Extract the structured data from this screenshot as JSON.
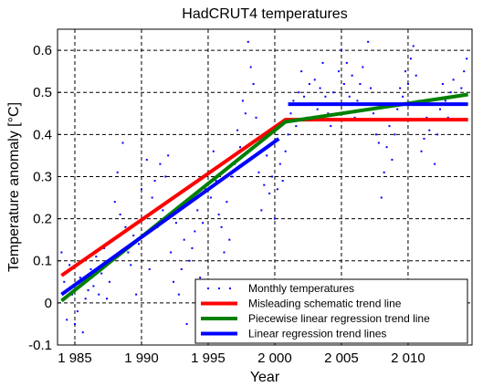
{
  "chart_data": {
    "type": "line",
    "title": "HadCRUT4 temperatures",
    "xlabel": "Year",
    "ylabel": "Temperature anomaly [°C]",
    "xlim": [
      1983.7,
      2014.8
    ],
    "ylim": [
      -0.1,
      0.65
    ],
    "xticks": [
      1985,
      1990,
      1995,
      2000,
      2005,
      2010
    ],
    "xtick_labels": [
      "1 985",
      "1 990",
      "1 995",
      "2 000",
      "2 005",
      "2 010"
    ],
    "yticks": [
      -0.1,
      0,
      0.1,
      0.2,
      0.3,
      0.4,
      0.5,
      0.6
    ],
    "ytick_labels": [
      "-0.1",
      "0",
      "0.1",
      "0.2",
      "0.3",
      "0.4",
      "0.5",
      "0.6"
    ],
    "grid": true,
    "legend_position": "bottom-right",
    "colors": {
      "monthly": "#0000ff",
      "misleading": "#ff0000",
      "piecewise": "#008000",
      "linear": "#0000ff"
    },
    "series": [
      {
        "name": "Monthly temperatures",
        "style": "dots",
        "color": "#0000ff",
        "x": [
          1984.0,
          1984.2,
          1984.4,
          1984.6,
          1984.8,
          1985.0,
          1985.2,
          1985.4,
          1985.6,
          1985.8,
          1986.0,
          1986.2,
          1986.4,
          1986.6,
          1986.8,
          1987.0,
          1987.2,
          1987.4,
          1987.6,
          1987.8,
          1988.0,
          1988.2,
          1988.4,
          1988.6,
          1988.8,
          1989.0,
          1989.2,
          1989.4,
          1989.6,
          1989.8,
          1990.0,
          1990.2,
          1990.4,
          1990.6,
          1990.8,
          1991.0,
          1991.2,
          1991.4,
          1991.6,
          1991.8,
          1992.0,
          1992.2,
          1992.4,
          1992.6,
          1992.8,
          1993.0,
          1993.2,
          1993.4,
          1993.6,
          1993.8,
          1994.0,
          1994.2,
          1994.4,
          1994.6,
          1994.8,
          1995.0,
          1995.2,
          1995.4,
          1995.6,
          1995.8,
          1996.0,
          1996.2,
          1996.4,
          1996.6,
          1996.8,
          1997.0,
          1997.2,
          1997.4,
          1997.6,
          1997.8,
          1998.0,
          1998.2,
          1998.4,
          1998.6,
          1998.8,
          1999.0,
          1999.2,
          1999.4,
          1999.6,
          1999.8,
          2000.0,
          2000.2,
          2000.4,
          2000.6,
          2000.8,
          2001.0,
          2001.2,
          2001.4,
          2001.6,
          2001.8,
          2002.0,
          2002.2,
          2002.4,
          2002.6,
          2002.8,
          2003.0,
          2003.2,
          2003.4,
          2003.6,
          2003.8,
          2004.0,
          2004.2,
          2004.4,
          2004.6,
          2004.8,
          2005.0,
          2005.2,
          2005.4,
          2005.6,
          2005.8,
          2006.0,
          2006.2,
          2006.4,
          2006.6,
          2006.8,
          2007.0,
          2007.2,
          2007.4,
          2007.6,
          2007.8,
          2008.0,
          2008.2,
          2008.4,
          2008.6,
          2008.8,
          2009.0,
          2009.2,
          2009.4,
          2009.6,
          2009.8,
          2010.0,
          2010.2,
          2010.4,
          2010.6,
          2010.8,
          2011.0,
          2011.2,
          2011.4,
          2011.6,
          2011.8,
          2012.0,
          2012.2,
          2012.4,
          2012.6,
          2012.8,
          2013.0,
          2013.2,
          2013.4,
          2013.6,
          2013.8,
          2014.0,
          2014.2,
          2014.4
        ],
        "y": [
          0.12,
          0.05,
          -0.04,
          0.09,
          0.02,
          -0.05,
          -0.02,
          0.06,
          -0.07,
          0.01,
          0.03,
          0.08,
          0.04,
          0.11,
          0.02,
          0.07,
          0.13,
          0.01,
          0.05,
          0.1,
          0.24,
          0.31,
          0.21,
          0.38,
          0.18,
          0.12,
          0.09,
          0.16,
          0.02,
          0.14,
          0.27,
          0.2,
          0.34,
          0.08,
          0.25,
          0.29,
          0.18,
          0.33,
          0.22,
          0.3,
          0.35,
          0.12,
          0.05,
          0.19,
          0.02,
          0.08,
          0.15,
          -0.05,
          0.1,
          0.13,
          0.17,
          0.22,
          0.06,
          0.19,
          0.27,
          0.31,
          0.25,
          0.36,
          0.29,
          0.21,
          0.18,
          0.12,
          0.24,
          0.15,
          0.3,
          0.33,
          0.41,
          0.37,
          0.48,
          0.45,
          0.62,
          0.56,
          0.52,
          0.44,
          0.31,
          0.22,
          0.28,
          0.35,
          0.26,
          0.3,
          0.2,
          0.27,
          0.33,
          0.29,
          0.36,
          0.4,
          0.45,
          0.48,
          0.42,
          0.5,
          0.55,
          0.49,
          0.44,
          0.52,
          0.47,
          0.53,
          0.46,
          0.51,
          0.57,
          0.49,
          0.45,
          0.42,
          0.5,
          0.47,
          0.55,
          0.6,
          0.52,
          0.57,
          0.49,
          0.54,
          0.44,
          0.48,
          0.52,
          0.56,
          0.47,
          0.62,
          0.51,
          0.45,
          0.4,
          0.38,
          0.25,
          0.31,
          0.37,
          0.42,
          0.34,
          0.4,
          0.46,
          0.51,
          0.49,
          0.55,
          0.52,
          0.58,
          0.61,
          0.54,
          0.48,
          0.36,
          0.39,
          0.44,
          0.41,
          0.47,
          0.33,
          0.4,
          0.46,
          0.52,
          0.48,
          0.44,
          0.5,
          0.53,
          0.49,
          0.47,
          0.51,
          0.55,
          0.58
        ]
      },
      {
        "name": "Misleading schematic trend line",
        "style": "line",
        "color": "#ff0000",
        "x": [
          1984.0,
          2000.8,
          2014.5
        ],
        "y": [
          0.065,
          0.435,
          0.435
        ]
      },
      {
        "name": "Piecewise linear regression trend line",
        "style": "line",
        "color": "#008000",
        "x": [
          1984.0,
          2000.8,
          2014.5
        ],
        "y": [
          0.005,
          0.43,
          0.495
        ]
      },
      {
        "name": "Linear regression trend lines",
        "style": "line",
        "color": "#0000ff",
        "x": [
          1984.0,
          2000.3
        ],
        "y": [
          0.02,
          0.39
        ]
      },
      {
        "name": "",
        "style": "line",
        "color": "#0000ff",
        "legend": false,
        "x": [
          2001.0,
          2014.5
        ],
        "y": [
          0.472,
          0.472
        ]
      }
    ]
  }
}
